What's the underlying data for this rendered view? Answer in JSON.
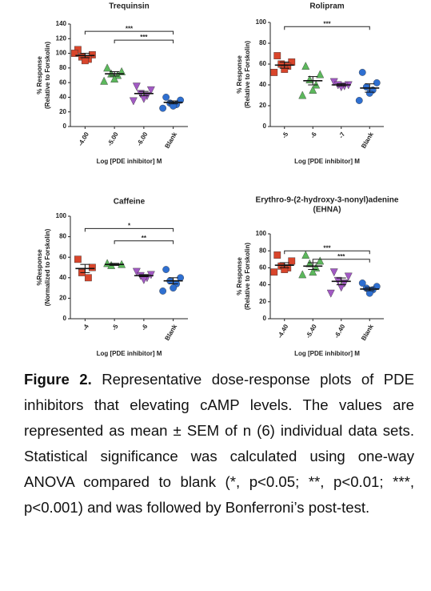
{
  "chart_data": [
    {
      "type": "dot",
      "title": [
        "Trequinsin"
      ],
      "ylabel": [
        "% Response",
        "(Relative to Forskolin)"
      ],
      "xlabel": "Log [PDE inhibitor] M",
      "categories": [
        "-4.00",
        "-5.00",
        "-6.00",
        "Blank"
      ],
      "colors": [
        "#d9452b",
        "#5cb85c",
        "#a259c4",
        "#2e6fd1"
      ],
      "markers": [
        "square",
        "triangle",
        "triangle-down",
        "circle"
      ],
      "points": [
        [
          105,
          98,
          95,
          92,
          90,
          100
        ],
        [
          80,
          75,
          72,
          70,
          65,
          62
        ],
        [
          55,
          50,
          45,
          42,
          38,
          35
        ],
        [
          40,
          36,
          32,
          30,
          28,
          25
        ]
      ],
      "means": [
        97,
        72,
        45,
        33
      ],
      "sems": [
        3,
        3,
        3,
        2
      ],
      "brackets": [
        {
          "between": [
            "-4.00",
            "Blank"
          ],
          "y": 130,
          "label": "***"
        },
        {
          "between": [
            "-5.00",
            "Blank"
          ],
          "y": 118,
          "label": "***"
        }
      ],
      "ylim": [
        0,
        140
      ],
      "yticks": [
        0,
        20,
        40,
        60,
        80,
        100,
        120,
        140
      ]
    },
    {
      "type": "dot",
      "title": [
        "Rolipram"
      ],
      "ylabel": [
        "% Response",
        "(Relative to Forskolin)"
      ],
      "xlabel": "Log [PDE inhibitor] M",
      "categories": [
        "-5",
        "-6",
        "-7",
        "Blank"
      ],
      "colors": [
        "#d9452b",
        "#5cb85c",
        "#a259c4",
        "#2e6fd1"
      ],
      "markers": [
        "square",
        "triangle",
        "triangle-down",
        "circle"
      ],
      "points": [
        [
          68,
          62,
          60,
          58,
          55,
          52
        ],
        [
          58,
          50,
          45,
          40,
          35,
          30
        ],
        [
          43,
          40,
          40,
          39,
          38
        ],
        [
          52,
          42,
          38,
          35,
          32,
          25
        ]
      ],
      "means": [
        59,
        44,
        40,
        37
      ],
      "sems": [
        3,
        4,
        1,
        4
      ],
      "brackets": [
        {
          "between": [
            "-5",
            "Blank"
          ],
          "y": 96,
          "label": "***"
        }
      ],
      "ylim": [
        0,
        100
      ],
      "yticks": [
        0,
        20,
        40,
        60,
        80,
        100
      ]
    },
    {
      "type": "dot",
      "title": [
        "Caffeine"
      ],
      "ylabel": [
        "%Response",
        "(Normalized to Forskolin)"
      ],
      "xlabel": "Log [PDE inhibitor] M",
      "categories": [
        "-4",
        "-5",
        "-6",
        "Blank"
      ],
      "colors": [
        "#d9452b",
        "#5cb85c",
        "#a259c4",
        "#2e6fd1"
      ],
      "markers": [
        "square",
        "triangle",
        "triangle-down",
        "circle"
      ],
      "points": [
        [
          58,
          50,
          45,
          40
        ],
        [
          54,
          53,
          52
        ],
        [
          46,
          43,
          42,
          40,
          38
        ],
        [
          48,
          40,
          37,
          34,
          30,
          27
        ]
      ],
      "means": [
        49,
        53,
        42,
        37
      ],
      "sems": [
        4,
        1,
        1,
        3
      ],
      "brackets": [
        {
          "between": [
            "-4",
            "Blank"
          ],
          "y": 88,
          "label": "*"
        },
        {
          "between": [
            "-5",
            "Blank"
          ],
          "y": 76,
          "label": "**"
        }
      ],
      "ylim": [
        0,
        100
      ],
      "yticks": [
        0,
        20,
        40,
        60,
        80,
        100
      ]
    },
    {
      "type": "dot",
      "title": [
        "Erythro-9-(2-hydroxy-3-nonyl)adenine",
        "(EHNA)"
      ],
      "ylabel": [
        "% Response",
        "(Relative to Forskolin)"
      ],
      "xlabel": "Log [PDE inhibitor] M",
      "categories": [
        "-4.40",
        "-5.40",
        "-6.40",
        "Blank"
      ],
      "colors": [
        "#d9452b",
        "#5cb85c",
        "#a259c4",
        "#2e6fd1"
      ],
      "markers": [
        "square",
        "triangle",
        "triangle-down",
        "circle"
      ],
      "points": [
        [
          75,
          68,
          62,
          60,
          58,
          55
        ],
        [
          75,
          68,
          65,
          60,
          55,
          52
        ],
        [
          55,
          50,
          45,
          42,
          37,
          30
        ],
        [
          42,
          38,
          36,
          34,
          30
        ]
      ],
      "means": [
        63,
        62,
        44,
        35
      ],
      "sems": [
        3,
        4,
        4,
        2
      ],
      "brackets": [
        {
          "between": [
            "-4.40",
            "Blank"
          ],
          "y": 80,
          "label": "***"
        },
        {
          "between": [
            "-5.40",
            "Blank"
          ],
          "y": 70,
          "label": "***"
        }
      ],
      "ylim": [
        0,
        100
      ],
      "yticks": [
        0,
        20,
        40,
        60,
        80,
        100
      ]
    }
  ],
  "caption": {
    "label": "Figure 2.",
    "text": "Representative dose-response plots of PDE inhibitors that elevating cAMP levels. The values are represented as mean ± SEM of n (6) individual data sets. Statistical significance was calculated using one-way ANOVA compared to blank (*, p<0.05; **, p<0.01; ***, p<0.001) and was followed by Bonferroni’s post-test."
  }
}
